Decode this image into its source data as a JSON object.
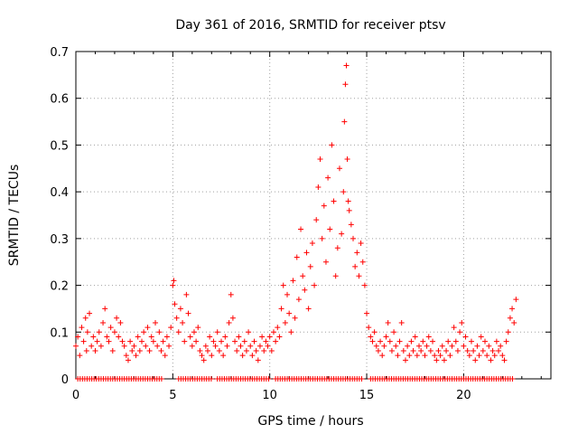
{
  "chart_data": {
    "type": "scatter",
    "title": "Day 361 of 2016, SRMTID for receiver ptsv",
    "xlabel": "GPS time / hours",
    "ylabel": "SRMTID / TECUs",
    "xlim": [
      0,
      24.5
    ],
    "ylim": [
      0,
      0.7
    ],
    "xticks": [
      0,
      5,
      10,
      15,
      20
    ],
    "xtick_labels": [
      "0",
      "5",
      "10",
      "15",
      "20"
    ],
    "yticks": [
      0,
      0.1,
      0.2,
      0.3,
      0.4,
      0.5,
      0.6,
      0.7
    ],
    "ytick_labels": [
      "0",
      "0.1",
      "0.2",
      "0.3",
      "0.4",
      "0.5",
      "0.6",
      "0.7"
    ],
    "grid": true,
    "marker": "+",
    "color": "#ff0000",
    "series": [
      {
        "name": "SRMTID",
        "points": [
          [
            0.0,
            0.07
          ],
          [
            0.1,
            0.09
          ],
          [
            0.2,
            0.05
          ],
          [
            0.3,
            0.11
          ],
          [
            0.4,
            0.08
          ],
          [
            0.5,
            0.13
          ],
          [
            0.55,
            0.06
          ],
          [
            0.6,
            0.1
          ],
          [
            0.7,
            0.14
          ],
          [
            0.8,
            0.07
          ],
          [
            0.9,
            0.09
          ],
          [
            1.0,
            0.06
          ],
          [
            1.1,
            0.08
          ],
          [
            1.2,
            0.1
          ],
          [
            1.3,
            0.07
          ],
          [
            1.4,
            0.12
          ],
          [
            1.5,
            0.15
          ],
          [
            1.6,
            0.09
          ],
          [
            1.7,
            0.08
          ],
          [
            1.8,
            0.11
          ],
          [
            1.9,
            0.06
          ],
          [
            2.0,
            0.1
          ],
          [
            2.1,
            0.13
          ],
          [
            2.2,
            0.09
          ],
          [
            2.3,
            0.12
          ],
          [
            2.4,
            0.08
          ],
          [
            2.5,
            0.07
          ],
          [
            2.6,
            0.05
          ],
          [
            2.7,
            0.04
          ],
          [
            2.8,
            0.08
          ],
          [
            2.9,
            0.06
          ],
          [
            3.0,
            0.07
          ],
          [
            3.1,
            0.05
          ],
          [
            3.2,
            0.09
          ],
          [
            3.3,
            0.06
          ],
          [
            3.4,
            0.08
          ],
          [
            3.5,
            0.1
          ],
          [
            3.6,
            0.07
          ],
          [
            3.7,
            0.11
          ],
          [
            3.8,
            0.06
          ],
          [
            3.9,
            0.09
          ],
          [
            4.0,
            0.08
          ],
          [
            4.1,
            0.12
          ],
          [
            4.2,
            0.07
          ],
          [
            4.3,
            0.1
          ],
          [
            4.4,
            0.06
          ],
          [
            4.5,
            0.08
          ],
          [
            4.6,
            0.05
          ],
          [
            4.7,
            0.09
          ],
          [
            4.8,
            0.07
          ],
          [
            4.9,
            0.11
          ],
          [
            5.0,
            0.2
          ],
          [
            5.05,
            0.21
          ],
          [
            5.1,
            0.16
          ],
          [
            5.2,
            0.13
          ],
          [
            5.3,
            0.1
          ],
          [
            5.4,
            0.15
          ],
          [
            5.5,
            0.12
          ],
          [
            5.6,
            0.08
          ],
          [
            5.7,
            0.18
          ],
          [
            5.8,
            0.14
          ],
          [
            5.9,
            0.09
          ],
          [
            6.0,
            0.07
          ],
          [
            6.1,
            0.1
          ],
          [
            6.2,
            0.08
          ],
          [
            6.3,
            0.11
          ],
          [
            6.4,
            0.06
          ],
          [
            6.5,
            0.05
          ],
          [
            6.6,
            0.04
          ],
          [
            6.7,
            0.07
          ],
          [
            6.8,
            0.06
          ],
          [
            6.9,
            0.09
          ],
          [
            7.0,
            0.05
          ],
          [
            7.1,
            0.08
          ],
          [
            7.2,
            0.07
          ],
          [
            7.3,
            0.1
          ],
          [
            7.4,
            0.06
          ],
          [
            7.5,
            0.08
          ],
          [
            7.6,
            0.05
          ],
          [
            7.7,
            0.09
          ],
          [
            7.8,
            0.07
          ],
          [
            7.9,
            0.12
          ],
          [
            8.0,
            0.18
          ],
          [
            8.1,
            0.13
          ],
          [
            8.2,
            0.08
          ],
          [
            8.3,
            0.06
          ],
          [
            8.4,
            0.09
          ],
          [
            8.5,
            0.07
          ],
          [
            8.6,
            0.05
          ],
          [
            8.7,
            0.08
          ],
          [
            8.8,
            0.06
          ],
          [
            8.9,
            0.1
          ],
          [
            9.0,
            0.07
          ],
          [
            9.1,
            0.05
          ],
          [
            9.2,
            0.08
          ],
          [
            9.3,
            0.06
          ],
          [
            9.4,
            0.04
          ],
          [
            9.5,
            0.07
          ],
          [
            9.6,
            0.09
          ],
          [
            9.7,
            0.06
          ],
          [
            9.8,
            0.08
          ],
          [
            9.9,
            0.07
          ],
          [
            10.0,
            0.09
          ],
          [
            10.1,
            0.06
          ],
          [
            10.2,
            0.1
          ],
          [
            10.3,
            0.08
          ],
          [
            10.4,
            0.11
          ],
          [
            10.5,
            0.09
          ],
          [
            10.6,
            0.15
          ],
          [
            10.7,
            0.2
          ],
          [
            10.8,
            0.12
          ],
          [
            10.9,
            0.18
          ],
          [
            11.0,
            0.14
          ],
          [
            11.1,
            0.1
          ],
          [
            11.2,
            0.21
          ],
          [
            11.3,
            0.13
          ],
          [
            11.4,
            0.26
          ],
          [
            11.5,
            0.17
          ],
          [
            11.6,
            0.32
          ],
          [
            11.7,
            0.22
          ],
          [
            11.8,
            0.19
          ],
          [
            11.9,
            0.27
          ],
          [
            12.0,
            0.15
          ],
          [
            12.1,
            0.24
          ],
          [
            12.2,
            0.29
          ],
          [
            12.3,
            0.2
          ],
          [
            12.4,
            0.34
          ],
          [
            12.5,
            0.41
          ],
          [
            12.6,
            0.47
          ],
          [
            12.7,
            0.3
          ],
          [
            12.8,
            0.37
          ],
          [
            12.9,
            0.25
          ],
          [
            13.0,
            0.43
          ],
          [
            13.1,
            0.32
          ],
          [
            13.2,
            0.5
          ],
          [
            13.3,
            0.38
          ],
          [
            13.4,
            0.22
          ],
          [
            13.5,
            0.28
          ],
          [
            13.6,
            0.45
          ],
          [
            13.7,
            0.31
          ],
          [
            13.8,
            0.4
          ],
          [
            13.85,
            0.55
          ],
          [
            13.9,
            0.63
          ],
          [
            13.95,
            0.67
          ],
          [
            14.0,
            0.47
          ],
          [
            14.05,
            0.38
          ],
          [
            14.1,
            0.36
          ],
          [
            14.2,
            0.33
          ],
          [
            14.3,
            0.3
          ],
          [
            14.4,
            0.24
          ],
          [
            14.5,
            0.27
          ],
          [
            14.6,
            0.22
          ],
          [
            14.7,
            0.29
          ],
          [
            14.8,
            0.25
          ],
          [
            14.9,
            0.2
          ],
          [
            15.0,
            0.14
          ],
          [
            15.1,
            0.11
          ],
          [
            15.2,
            0.09
          ],
          [
            15.3,
            0.08
          ],
          [
            15.4,
            0.1
          ],
          [
            15.5,
            0.07
          ],
          [
            15.6,
            0.06
          ],
          [
            15.7,
            0.08
          ],
          [
            15.8,
            0.05
          ],
          [
            15.9,
            0.07
          ],
          [
            16.0,
            0.09
          ],
          [
            16.1,
            0.12
          ],
          [
            16.2,
            0.08
          ],
          [
            16.3,
            0.06
          ],
          [
            16.4,
            0.1
          ],
          [
            16.5,
            0.07
          ],
          [
            16.6,
            0.05
          ],
          [
            16.7,
            0.08
          ],
          [
            16.8,
            0.12
          ],
          [
            16.9,
            0.06
          ],
          [
            17.0,
            0.04
          ],
          [
            17.1,
            0.07
          ],
          [
            17.2,
            0.05
          ],
          [
            17.3,
            0.08
          ],
          [
            17.4,
            0.06
          ],
          [
            17.5,
            0.09
          ],
          [
            17.6,
            0.05
          ],
          [
            17.7,
            0.07
          ],
          [
            17.8,
            0.06
          ],
          [
            17.9,
            0.08
          ],
          [
            18.0,
            0.05
          ],
          [
            18.1,
            0.07
          ],
          [
            18.2,
            0.09
          ],
          [
            18.3,
            0.06
          ],
          [
            18.4,
            0.08
          ],
          [
            18.5,
            0.05
          ],
          [
            18.6,
            0.04
          ],
          [
            18.7,
            0.06
          ],
          [
            18.8,
            0.05
          ],
          [
            18.9,
            0.07
          ],
          [
            19.0,
            0.04
          ],
          [
            19.1,
            0.06
          ],
          [
            19.2,
            0.08
          ],
          [
            19.3,
            0.05
          ],
          [
            19.4,
            0.07
          ],
          [
            19.5,
            0.11
          ],
          [
            19.6,
            0.08
          ],
          [
            19.7,
            0.06
          ],
          [
            19.8,
            0.1
          ],
          [
            19.9,
            0.12
          ],
          [
            20.0,
            0.07
          ],
          [
            20.1,
            0.09
          ],
          [
            20.2,
            0.06
          ],
          [
            20.3,
            0.05
          ],
          [
            20.4,
            0.08
          ],
          [
            20.5,
            0.06
          ],
          [
            20.6,
            0.04
          ],
          [
            20.7,
            0.07
          ],
          [
            20.8,
            0.05
          ],
          [
            20.9,
            0.09
          ],
          [
            21.0,
            0.06
          ],
          [
            21.1,
            0.08
          ],
          [
            21.2,
            0.05
          ],
          [
            21.3,
            0.07
          ],
          [
            21.4,
            0.04
          ],
          [
            21.5,
            0.06
          ],
          [
            21.6,
            0.05
          ],
          [
            21.7,
            0.08
          ],
          [
            21.8,
            0.06
          ],
          [
            21.9,
            0.07
          ],
          [
            22.0,
            0.05
          ],
          [
            22.1,
            0.04
          ],
          [
            22.2,
            0.08
          ],
          [
            22.3,
            0.1
          ],
          [
            22.4,
            0.13
          ],
          [
            22.5,
            0.15
          ],
          [
            22.6,
            0.12
          ],
          [
            22.7,
            0.17
          ]
        ]
      }
    ],
    "zero_value_ranges_hours": [
      [
        0.1,
        4.5
      ],
      [
        5.3,
        7.0
      ],
      [
        7.3,
        10.0
      ],
      [
        10.3,
        14.8
      ],
      [
        15.2,
        22.6
      ]
    ]
  }
}
